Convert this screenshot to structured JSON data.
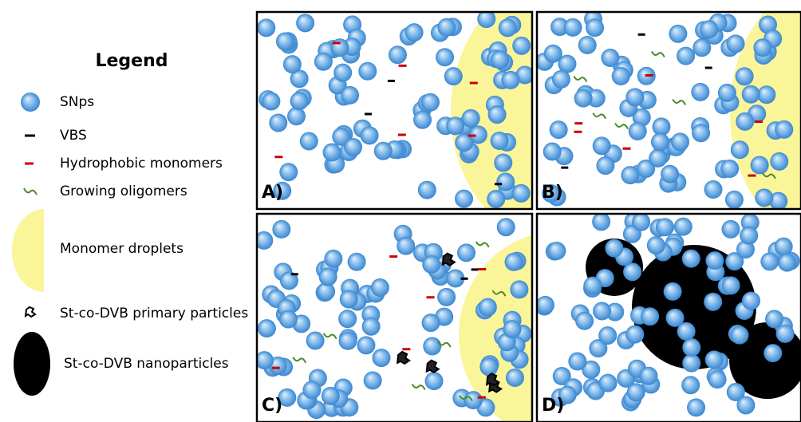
{
  "legend": {
    "title": "Legend",
    "items": [
      "SNps",
      "VBS",
      "Hydrophobic monomers",
      "Growing oligomers",
      "Monomer droplets",
      "St-co-DVB primary particles",
      "St-co-DVB nanoparticles"
    ]
  },
  "panels": [
    {
      "label": "A)"
    },
    {
      "label": "B)"
    },
    {
      "label": "C)"
    },
    {
      "label": "D)"
    }
  ]
}
